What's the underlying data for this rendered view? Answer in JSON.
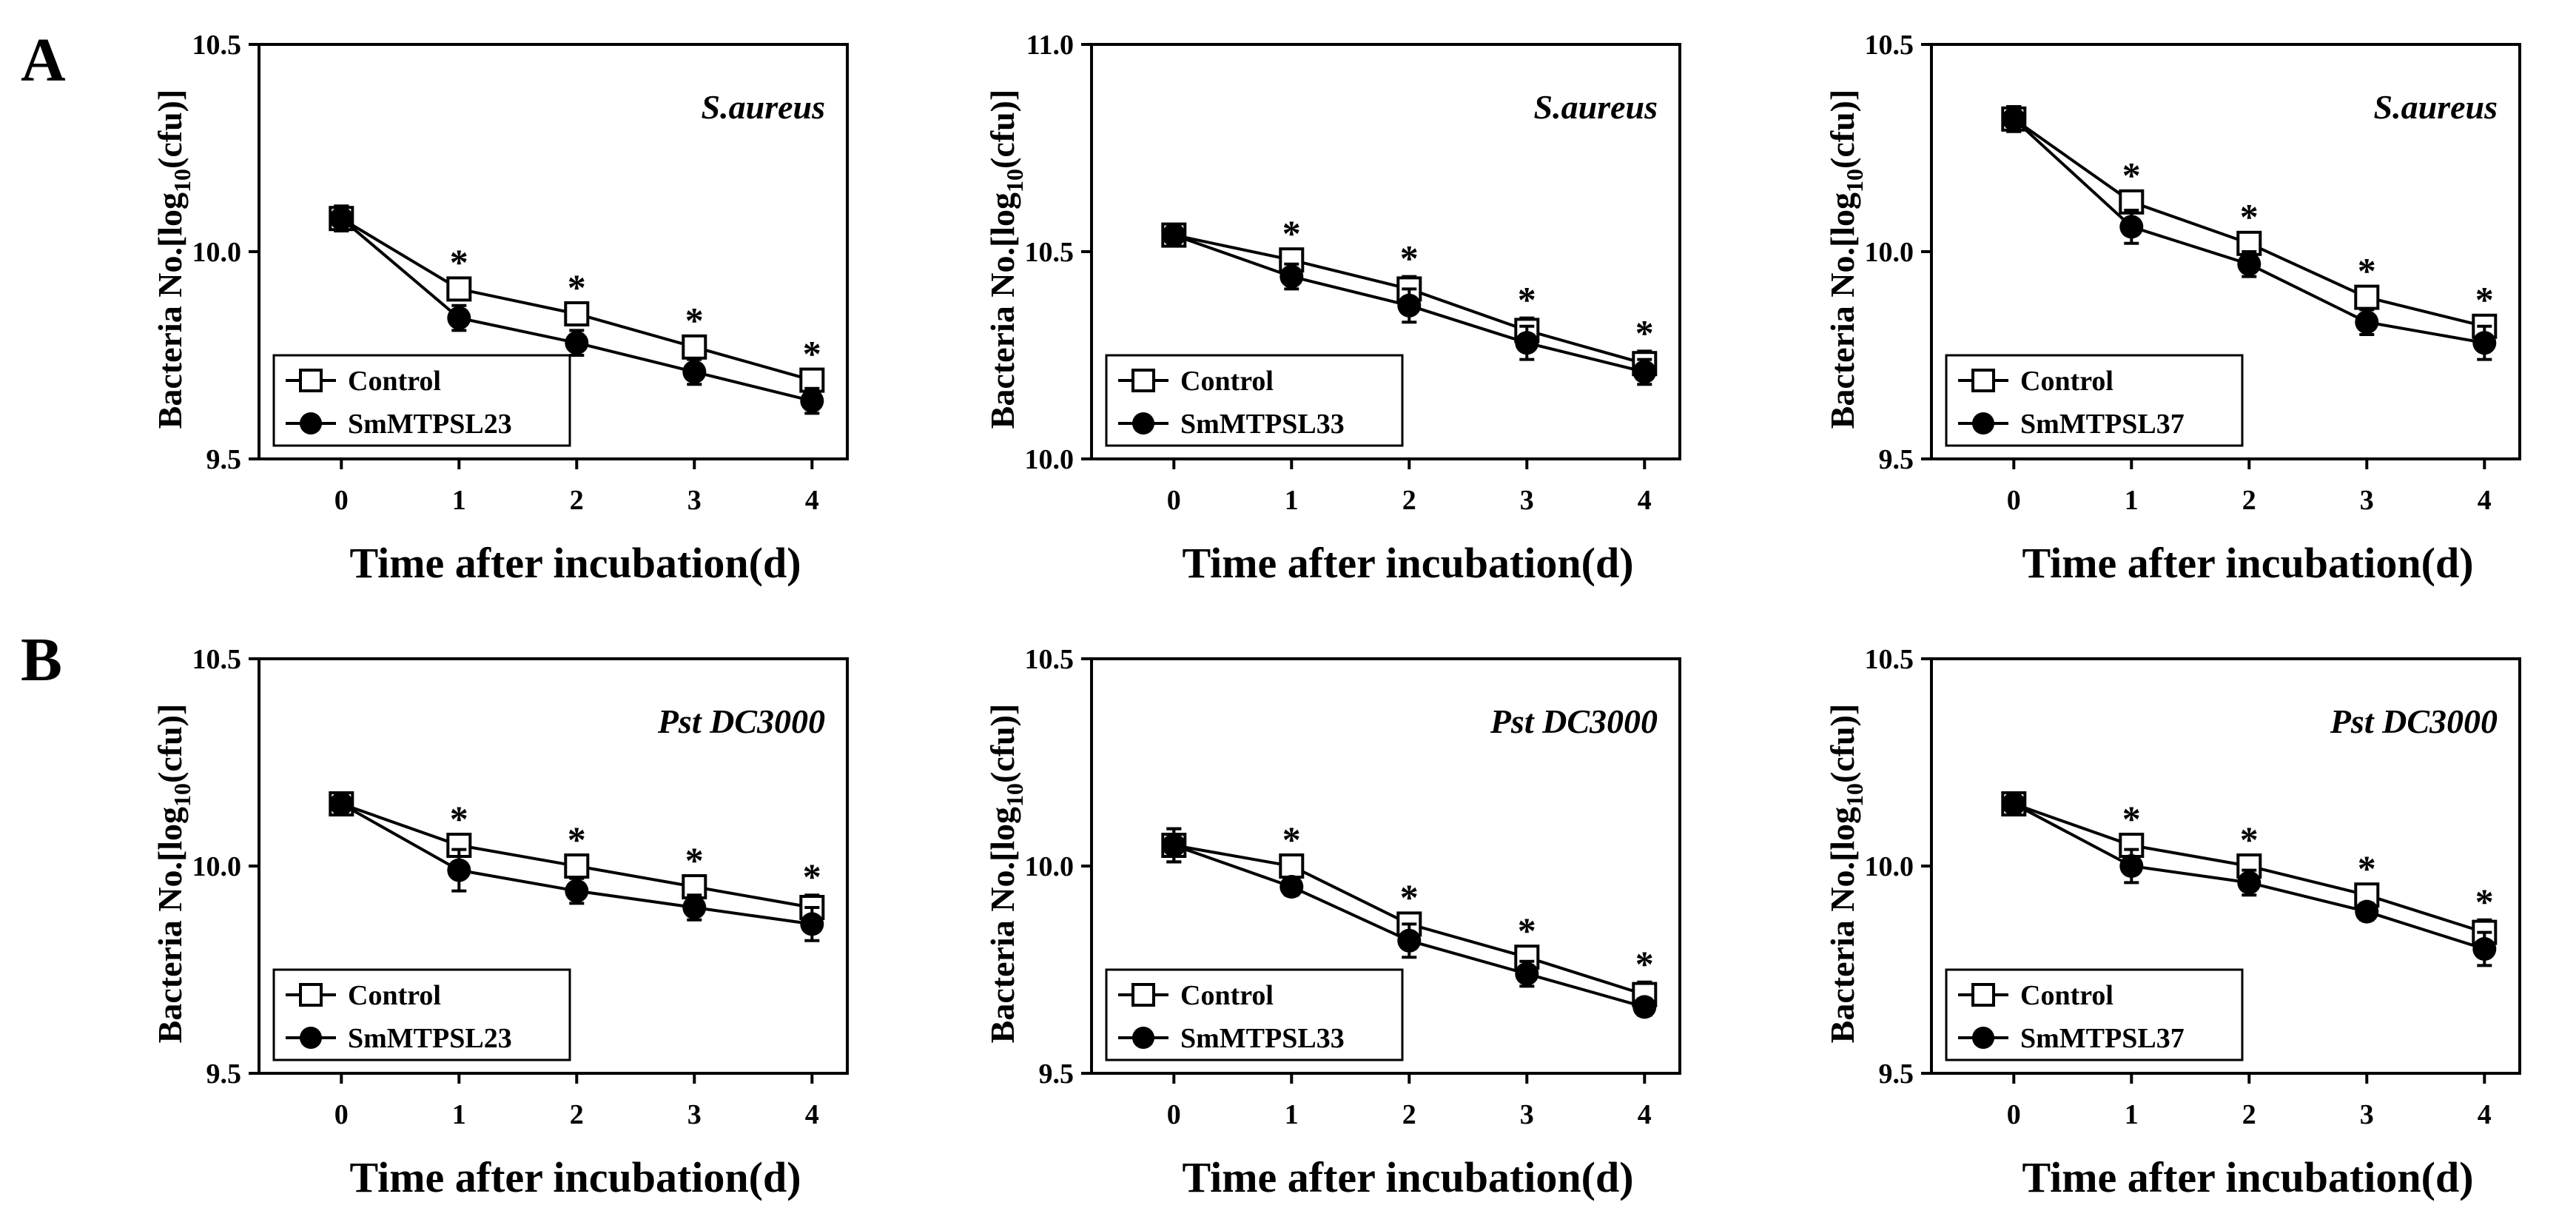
{
  "figure": {
    "rows": [
      {
        "label": "A"
      },
      {
        "label": "B"
      }
    ]
  },
  "chart_data": [
    {
      "type": "line",
      "row": "A",
      "organism": "S.aureus",
      "xlabel": "Time after incubation(d)",
      "ylabel_main": "Bacteria No.[log",
      "ylabel_sub": "10",
      "ylabel_tail": "(cfu)]",
      "x": [
        0,
        1,
        2,
        3,
        4
      ],
      "xlim": [
        -0.7,
        4.3
      ],
      "ylim": [
        9.5,
        10.5
      ],
      "yticks": [
        "9.5",
        "10.0",
        "10.5"
      ],
      "legend_position": "bottom-left",
      "series": [
        {
          "name": "Control",
          "marker": "open-square",
          "values": [
            10.08,
            9.91,
            9.85,
            9.77,
            9.69
          ],
          "errors": [
            0.03,
            0.02,
            0.02,
            0.02,
            0.02
          ]
        },
        {
          "name": "SmMTPSL23",
          "marker": "filled-circle",
          "values": [
            10.08,
            9.84,
            9.78,
            9.71,
            9.64
          ],
          "errors": [
            0.03,
            0.03,
            0.03,
            0.03,
            0.03
          ]
        }
      ],
      "significance": [
        "",
        "*",
        "*",
        "*",
        "*"
      ]
    },
    {
      "type": "line",
      "row": "A",
      "organism": "S.aureus",
      "xlabel": "Time after incubation(d)",
      "ylabel_main": "Bacteria No.[log",
      "ylabel_sub": "10",
      "ylabel_tail": "(cfu)]",
      "x": [
        0,
        1,
        2,
        3,
        4
      ],
      "xlim": [
        -0.7,
        4.3
      ],
      "ylim": [
        10.0,
        11.0
      ],
      "yticks": [
        "10.0",
        "10.5",
        "11.0"
      ],
      "legend_position": "bottom-left",
      "series": [
        {
          "name": "Control",
          "marker": "open-square",
          "values": [
            10.54,
            10.48,
            10.41,
            10.31,
            10.23
          ],
          "errors": [
            0.02,
            0.02,
            0.03,
            0.03,
            0.03
          ]
        },
        {
          "name": "SmMTPSL33",
          "marker": "filled-circle",
          "values": [
            10.54,
            10.44,
            10.37,
            10.28,
            10.21
          ],
          "errors": [
            0.02,
            0.03,
            0.04,
            0.04,
            0.03
          ]
        }
      ],
      "significance": [
        "",
        "*",
        "*",
        "*",
        "*"
      ]
    },
    {
      "type": "line",
      "row": "A",
      "organism": "S.aureus",
      "xlabel": "Time after incubation(d)",
      "ylabel_main": "Bacteria No.[log",
      "ylabel_sub": "10",
      "ylabel_tail": "(cfu)]",
      "x": [
        0,
        1,
        2,
        3,
        4
      ],
      "xlim": [
        -0.7,
        4.3
      ],
      "ylim": [
        9.5,
        10.5
      ],
      "yticks": [
        "9.5",
        "10.0",
        "10.5"
      ],
      "legend_position": "bottom-left",
      "series": [
        {
          "name": "Control",
          "marker": "open-square",
          "values": [
            10.32,
            10.12,
            10.02,
            9.89,
            9.82
          ],
          "errors": [
            0.03,
            0.02,
            0.02,
            0.02,
            0.02
          ]
        },
        {
          "name": "SmMTPSL37",
          "marker": "filled-circle",
          "values": [
            10.32,
            10.06,
            9.97,
            9.83,
            9.78
          ],
          "errors": [
            0.03,
            0.04,
            0.03,
            0.03,
            0.04
          ]
        }
      ],
      "significance": [
        "",
        "*",
        "*",
        "*",
        "*"
      ]
    },
    {
      "type": "line",
      "row": "B",
      "organism": "Pst DC3000",
      "xlabel": "Time after incubation(d)",
      "ylabel_main": "Bacteria No.[log",
      "ylabel_sub": "10",
      "ylabel_tail": "(cfu)]",
      "x": [
        0,
        1,
        2,
        3,
        4
      ],
      "xlim": [
        -0.7,
        4.3
      ],
      "ylim": [
        9.5,
        10.5
      ],
      "yticks": [
        "9.5",
        "10.0",
        "10.5"
      ],
      "legend_position": "bottom-left",
      "series": [
        {
          "name": "Control",
          "marker": "open-square",
          "values": [
            10.15,
            10.05,
            10.0,
            9.95,
            9.9
          ],
          "errors": [
            0.02,
            0.02,
            0.02,
            0.02,
            0.03
          ]
        },
        {
          "name": "SmMTPSL23",
          "marker": "filled-circle",
          "values": [
            10.15,
            9.99,
            9.94,
            9.9,
            9.86
          ],
          "errors": [
            0.02,
            0.05,
            0.03,
            0.03,
            0.04
          ]
        }
      ],
      "significance": [
        "",
        "*",
        "*",
        "*",
        "*"
      ]
    },
    {
      "type": "line",
      "row": "B",
      "organism": "Pst DC3000",
      "xlabel": "Time after incubation(d)",
      "ylabel_main": "Bacteria No.[log",
      "ylabel_sub": "10",
      "ylabel_tail": "(cfu)]",
      "x": [
        0,
        1,
        2,
        3,
        4
      ],
      "xlim": [
        -0.7,
        4.3
      ],
      "ylim": [
        9.5,
        10.5
      ],
      "yticks": [
        "9.5",
        "10.0",
        "10.5"
      ],
      "legend_position": "bottom-left",
      "series": [
        {
          "name": "Control",
          "marker": "open-square",
          "values": [
            10.05,
            10.0,
            9.86,
            9.78,
            9.69
          ],
          "errors": [
            0.04,
            0.02,
            0.02,
            0.02,
            0.03
          ]
        },
        {
          "name": "SmMTPSL33",
          "marker": "filled-circle",
          "values": [
            10.05,
            9.95,
            9.82,
            9.74,
            9.66
          ],
          "errors": [
            0.04,
            0.02,
            0.04,
            0.03,
            0.02
          ]
        }
      ],
      "significance": [
        "",
        "*",
        "*",
        "*",
        "*"
      ]
    },
    {
      "type": "line",
      "row": "B",
      "organism": "Pst DC3000",
      "xlabel": "Time after incubation(d)",
      "ylabel_main": "Bacteria No.[log",
      "ylabel_sub": "10",
      "ylabel_tail": "(cfu)]",
      "x": [
        0,
        1,
        2,
        3,
        4
      ],
      "xlim": [
        -0.7,
        4.3
      ],
      "ylim": [
        9.5,
        10.5
      ],
      "yticks": [
        "9.5",
        "10.0",
        "10.5"
      ],
      "legend_position": "bottom-left",
      "series": [
        {
          "name": "Control",
          "marker": "open-square",
          "values": [
            10.15,
            10.05,
            10.0,
            9.93,
            9.84
          ],
          "errors": [
            0.02,
            0.02,
            0.02,
            0.02,
            0.03
          ]
        },
        {
          "name": "SmMTPSL37",
          "marker": "filled-circle",
          "values": [
            10.15,
            10.0,
            9.96,
            9.89,
            9.8
          ],
          "errors": [
            0.02,
            0.04,
            0.03,
            0.02,
            0.04
          ]
        }
      ],
      "significance": [
        "",
        "*",
        "*",
        "*",
        "*"
      ]
    }
  ]
}
